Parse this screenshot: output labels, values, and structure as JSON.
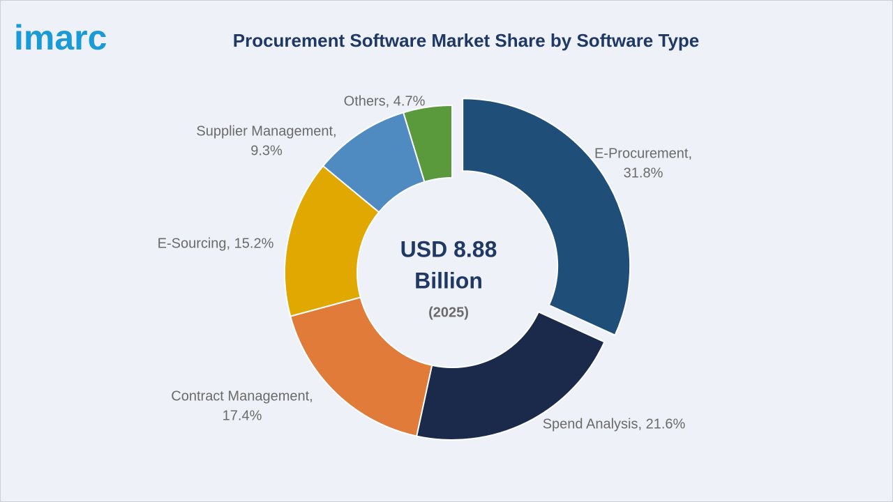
{
  "logo": "imarc",
  "chart_data": {
    "type": "donut",
    "title": "Procurement Software Market Share by Software Type",
    "values": [
      31.8,
      21.6,
      17.4,
      15.2,
      9.3,
      4.7
    ],
    "value_labels": [
      [
        "E-Procurement,",
        "31.8%"
      ],
      [
        "Spend Analysis, 21.6%"
      ],
      [
        "Contract Management,",
        "17.4%"
      ],
      [
        "E-Sourcing, 15.2%"
      ],
      [
        "Supplier Management,",
        "9.3%"
      ],
      [
        "Others, 4.7%"
      ]
    ],
    "colors": [
      "#1f4e79",
      "#1b2a4a",
      "#e07b39",
      "#e0a800",
      "#4f8bc0",
      "#5b9a3c"
    ],
    "center_text": [
      "USD 8.88",
      "Billion",
      "(2025)"
    ]
  }
}
